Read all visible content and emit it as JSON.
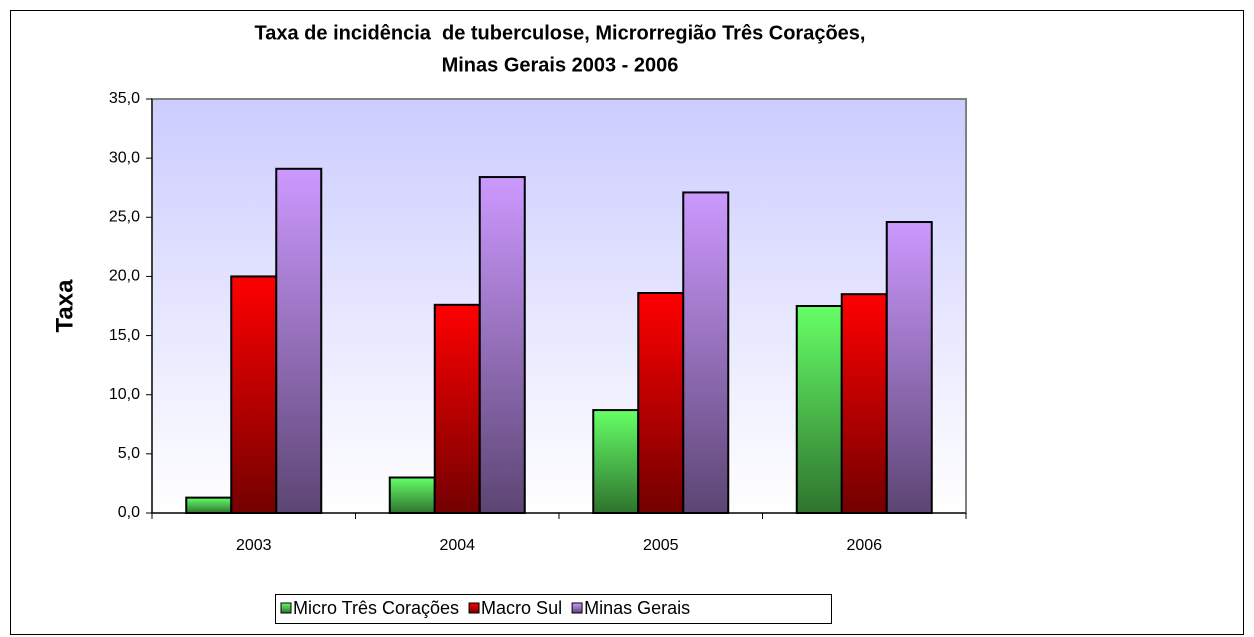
{
  "chart_data": {
    "type": "bar",
    "title": [
      "Taxa de incidência  de tuberculose, Microrregião Três Corações,",
      "Minas Gerais 2003 - 2006"
    ],
    "y_label": "Taxa",
    "categories": [
      "2003",
      "2004",
      "2005",
      "2006"
    ],
    "series": [
      {
        "name": "Micro Três Corações",
        "color": "#66ff66",
        "values": [
          1.3,
          3.0,
          8.7,
          17.5
        ]
      },
      {
        "name": "Macro Sul",
        "color": "#ff0000",
        "values": [
          20.0,
          17.6,
          18.6,
          18.5
        ]
      },
      {
        "name": "Minas Gerais",
        "color": "#cc99ff",
        "values": [
          29.1,
          28.4,
          27.1,
          24.6
        ]
      }
    ],
    "ylim": [
      0,
      35
    ],
    "yticks": [
      {
        "value": 0,
        "label": "0,0"
      },
      {
        "value": 5,
        "label": "5,0"
      },
      {
        "value": 10,
        "label": "10,0"
      },
      {
        "value": 15,
        "label": "15,0"
      },
      {
        "value": 20,
        "label": "20,0"
      },
      {
        "value": 25,
        "label": "25,0"
      },
      {
        "value": 30,
        "label": "30,0"
      },
      {
        "value": 35,
        "label": "35,0"
      }
    ],
    "legend": "bottom"
  }
}
